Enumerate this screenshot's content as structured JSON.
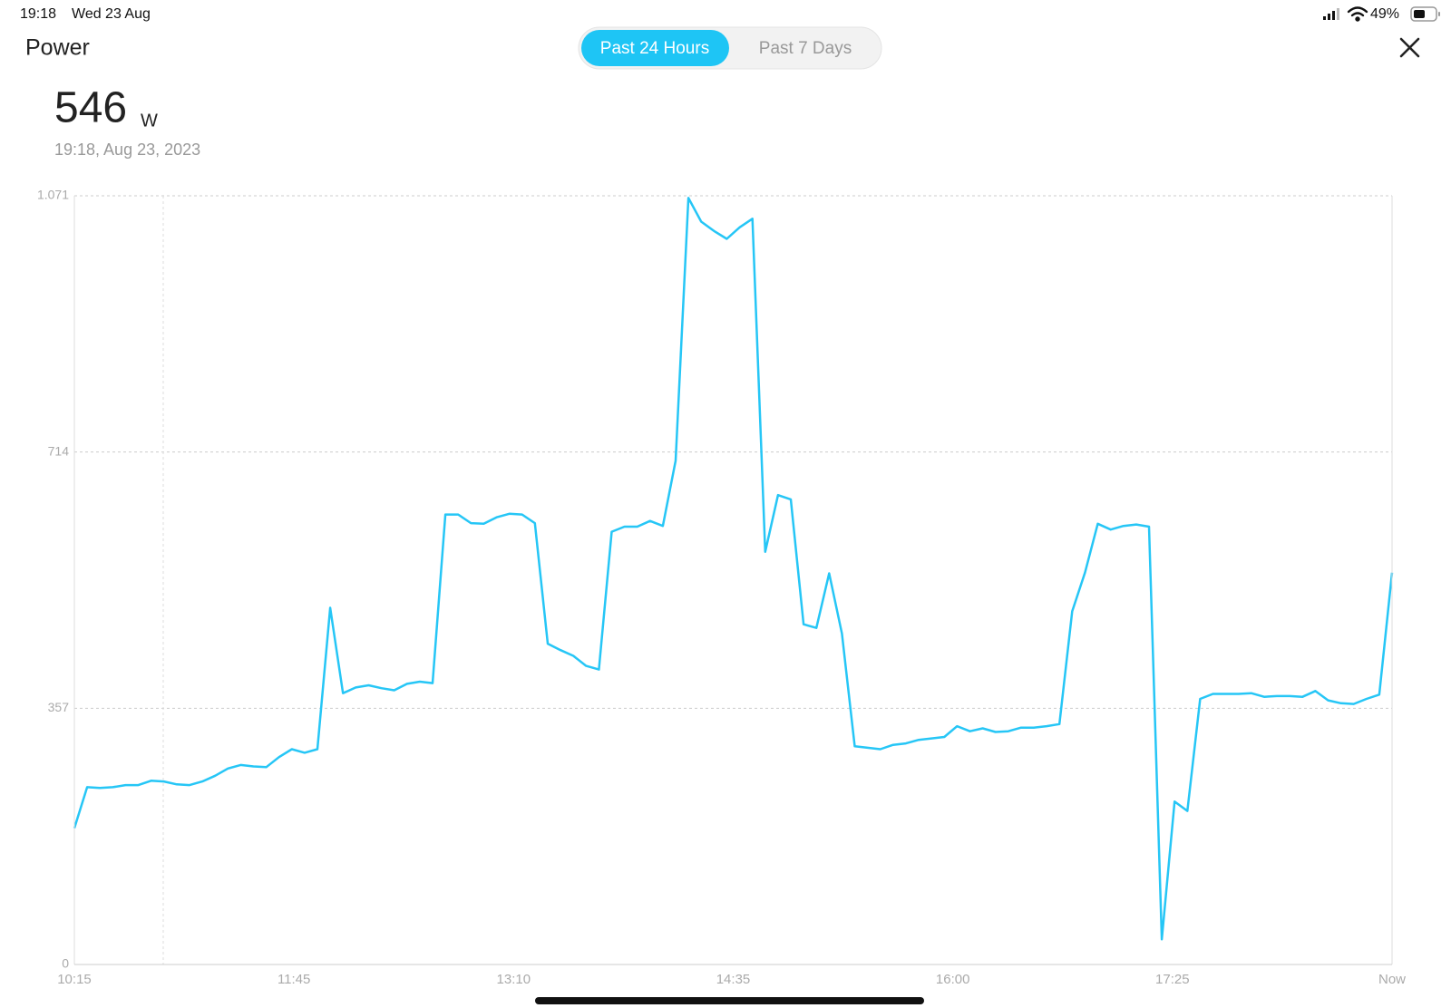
{
  "status_bar": {
    "time": "19:18",
    "date": "Wed 23 Aug",
    "battery": "49%"
  },
  "header": {
    "title": "Power",
    "tabs": [
      "Past 24 Hours",
      "Past 7 Days"
    ],
    "active_tab": 0
  },
  "reading": {
    "value": "546",
    "unit": "W",
    "timestamp": "19:18, Aug 23, 2023"
  },
  "chart_data": {
    "type": "line",
    "color": "#26c6f6",
    "grid": true,
    "ylim": [
      0,
      1071
    ],
    "yticks": [
      0,
      357,
      714,
      {
        "value": 1071,
        "label": "1.071"
      }
    ],
    "x_labels": [
      "10:15",
      "11:45",
      "13:10",
      "14:35",
      "16:00",
      "17:25",
      "Now"
    ],
    "values": [
      190,
      247,
      246,
      247,
      250,
      250,
      256,
      255,
      251,
      250,
      255,
      263,
      273,
      278,
      276,
      275,
      289,
      300,
      295,
      300,
      497,
      378,
      386,
      389,
      385,
      382,
      391,
      394,
      392,
      627,
      627,
      615,
      614,
      623,
      628,
      627,
      615,
      447,
      438,
      430,
      416,
      411,
      603,
      610,
      610,
      618,
      611,
      702,
      1068,
      1035,
      1022,
      1011,
      1027,
      1039,
      575,
      654,
      648,
      474,
      469,
      545,
      461,
      304,
      302,
      300,
      306,
      308,
      313,
      315,
      317,
      332,
      325,
      329,
      324,
      325,
      330,
      330,
      332,
      335,
      492,
      546,
      614,
      606,
      611,
      613,
      610,
      35,
      227,
      214,
      370,
      377,
      377,
      377,
      378,
      373,
      374,
      374,
      373,
      381,
      368,
      364,
      363,
      370,
      376,
      546
    ]
  }
}
